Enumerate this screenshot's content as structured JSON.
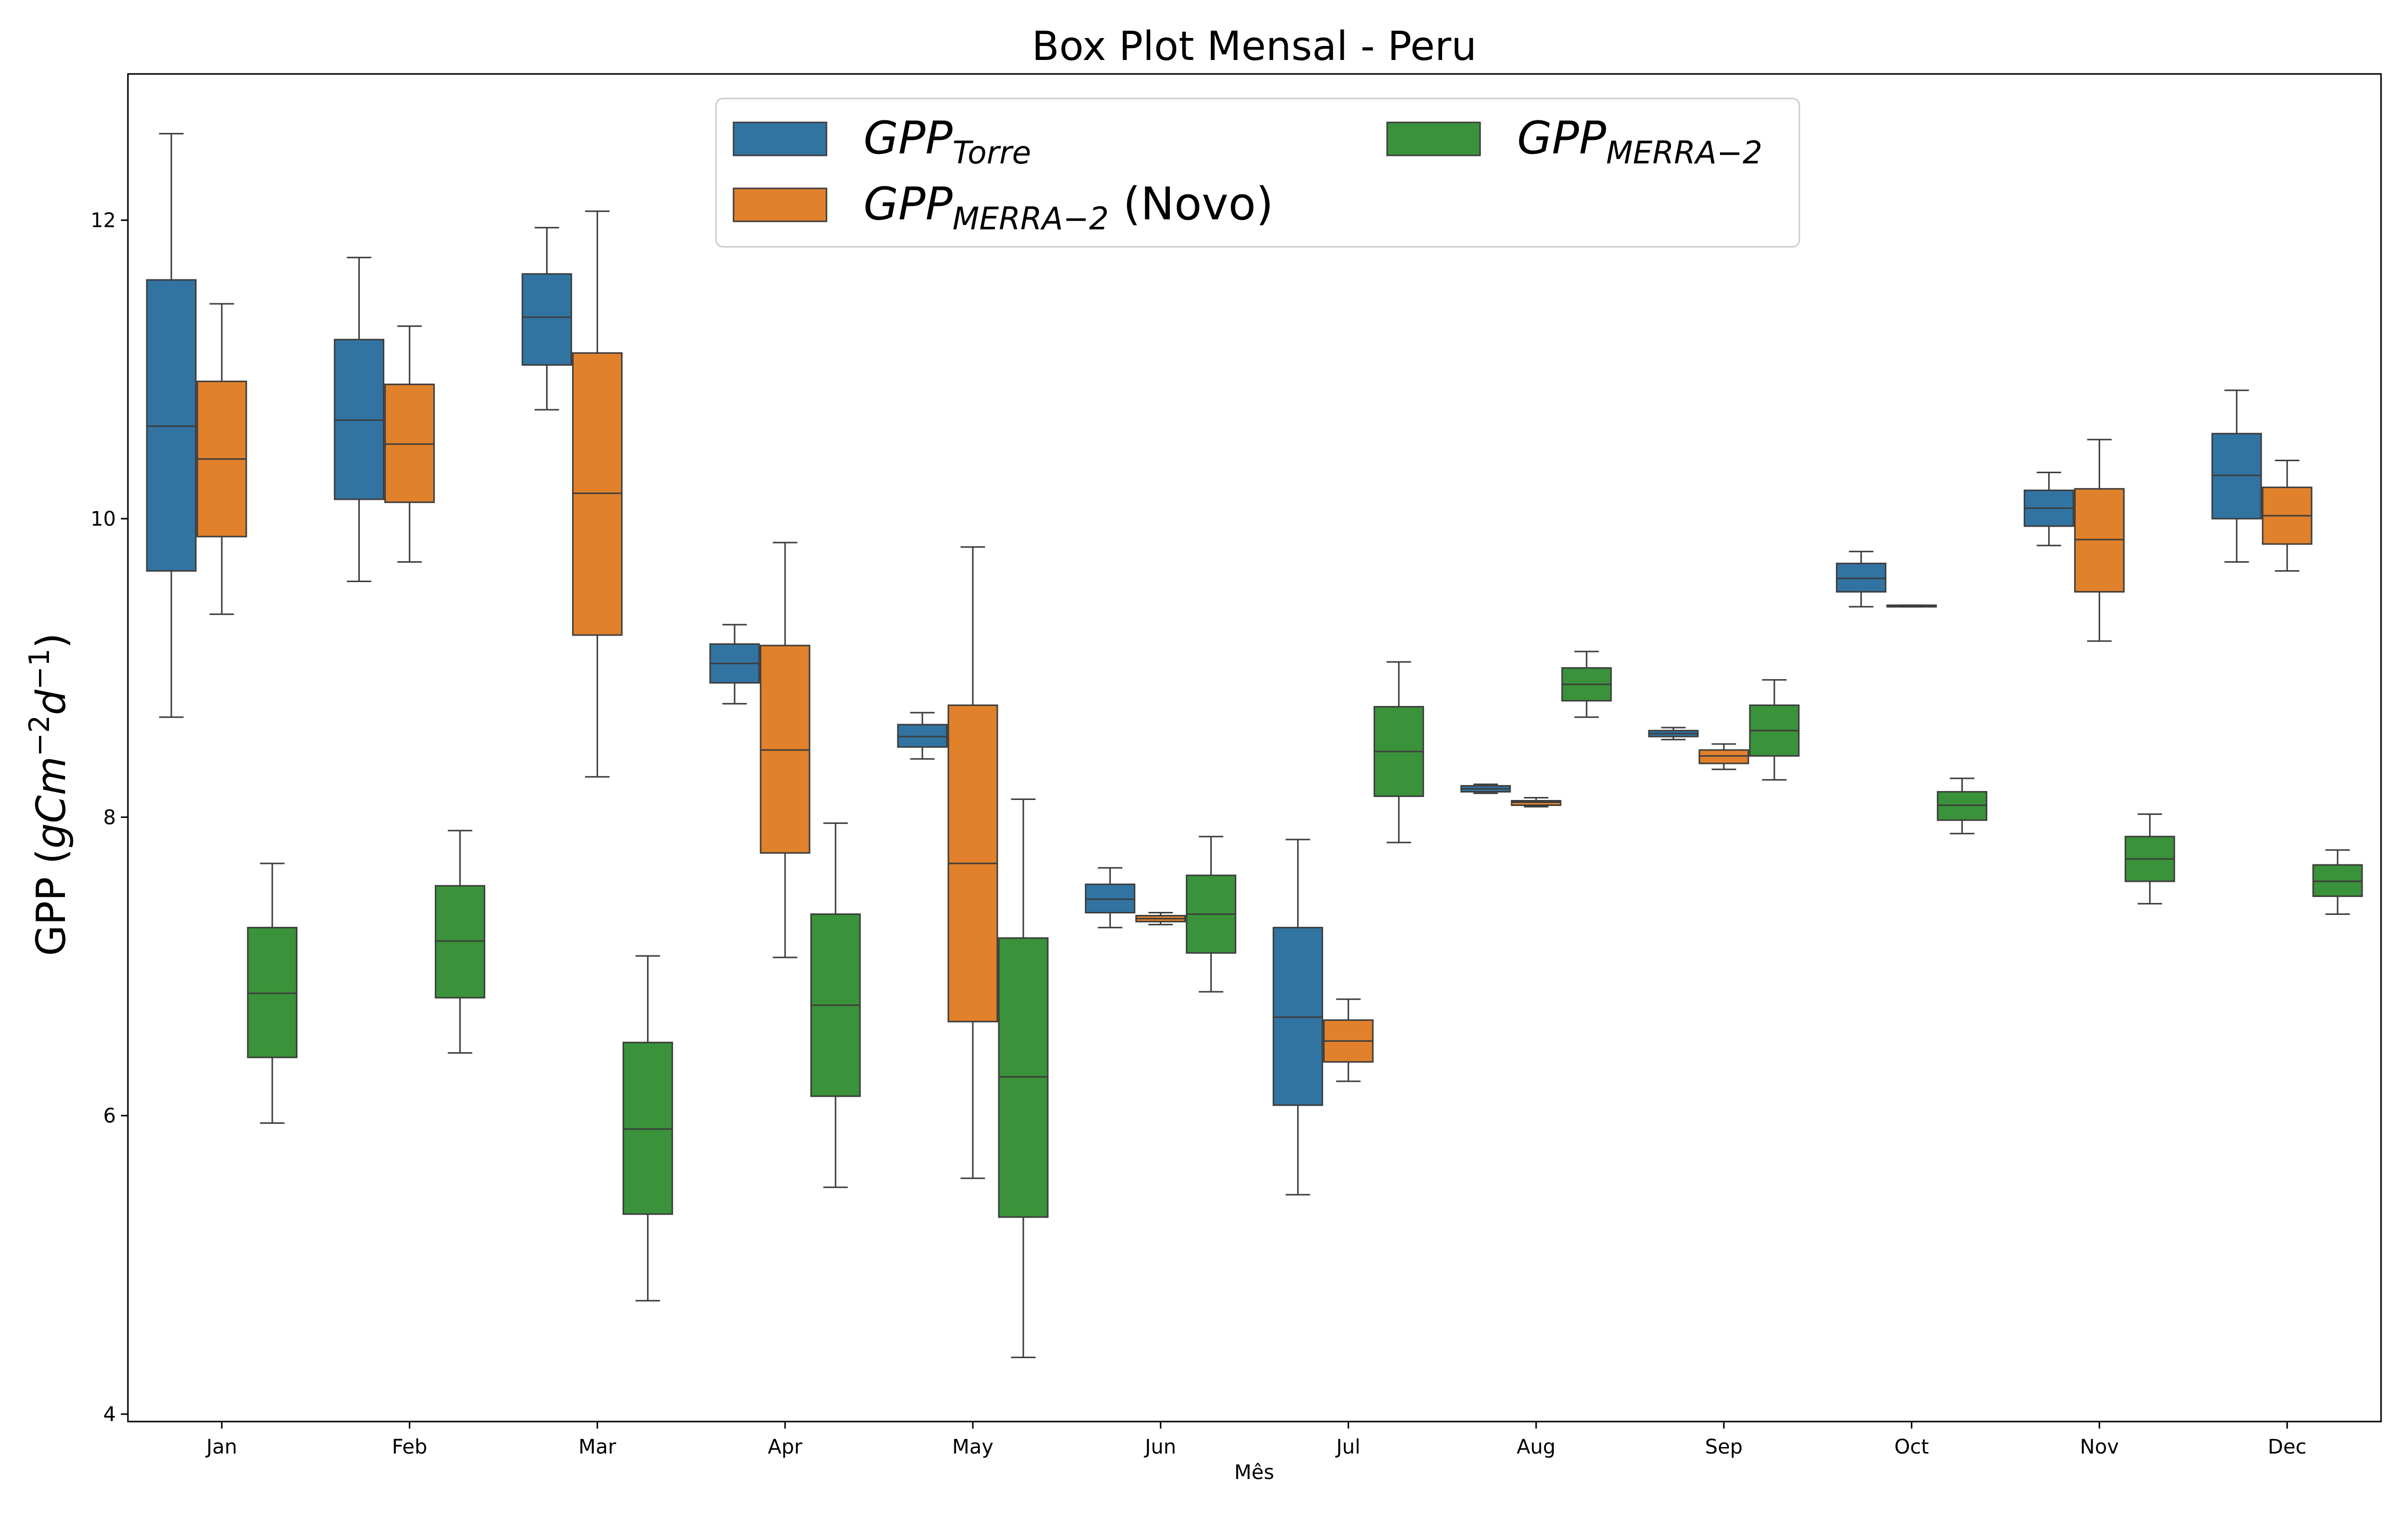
{
  "chart_data": {
    "type": "box",
    "title": "Box Plot Mensal - Peru",
    "xlabel": "Mês",
    "ylabel": {
      "prefix": "GPP (",
      "base": "gCm",
      "sup1": "−2",
      "mid": "d",
      "sup2": "−1",
      "suffix": ")"
    },
    "ylim": [
      3.95,
      12.98
    ],
    "yticks": [
      4,
      6,
      8,
      10,
      12
    ],
    "categories": [
      "Jan",
      "Feb",
      "Mar",
      "Apr",
      "May",
      "Jun",
      "Jul",
      "Aug",
      "Sep",
      "Oct",
      "Nov",
      "Dec"
    ],
    "legend": {
      "placement": "top-center"
    },
    "series": [
      {
        "name_base": "GPP",
        "name_sub": "Torre",
        "name_suffix": "",
        "color": "#3274a1",
        "boxes": [
          [
            8.67,
            9.65,
            10.62,
            11.6,
            12.58
          ],
          [
            9.58,
            10.13,
            10.66,
            11.2,
            11.75
          ],
          [
            10.73,
            11.03,
            11.35,
            11.64,
            11.95
          ],
          [
            8.76,
            8.9,
            9.03,
            9.16,
            9.29
          ],
          [
            8.39,
            8.47,
            8.54,
            8.62,
            8.7
          ],
          [
            7.26,
            7.36,
            7.45,
            7.55,
            7.66
          ],
          [
            5.47,
            6.07,
            6.66,
            7.26,
            7.85
          ],
          [
            8.16,
            8.17,
            8.19,
            8.21,
            8.22
          ],
          [
            8.52,
            8.54,
            8.56,
            8.58,
            8.6
          ],
          [
            9.41,
            9.51,
            9.6,
            9.7,
            9.78
          ],
          [
            9.82,
            9.95,
            10.07,
            10.19,
            10.31
          ],
          [
            9.71,
            10.0,
            10.29,
            10.57,
            10.86
          ]
        ]
      },
      {
        "name_base": "GPP",
        "name_sub": "MERRA−2",
        "name_suffix": " (Novo)",
        "color": "#e1812c",
        "boxes": [
          [
            9.36,
            9.88,
            10.4,
            10.92,
            11.44
          ],
          [
            9.71,
            10.11,
            10.5,
            10.9,
            11.29
          ],
          [
            8.27,
            9.22,
            10.17,
            11.11,
            12.06
          ],
          [
            7.06,
            7.76,
            8.45,
            9.15,
            9.84
          ],
          [
            5.58,
            6.63,
            7.69,
            8.75,
            9.81
          ],
          [
            7.28,
            7.3,
            7.32,
            7.34,
            7.36
          ],
          [
            6.23,
            6.36,
            6.5,
            6.64,
            6.78
          ],
          [
            8.07,
            8.08,
            8.1,
            8.11,
            8.13
          ],
          [
            8.32,
            8.36,
            8.41,
            8.45,
            8.49
          ],
          [
            9.41,
            9.41,
            9.41,
            9.42,
            9.42
          ],
          [
            9.18,
            9.51,
            9.86,
            10.2,
            10.53
          ],
          [
            9.65,
            9.83,
            10.02,
            10.21,
            10.39
          ]
        ]
      },
      {
        "name_base": "GPP",
        "name_sub": "MERRA−2",
        "name_suffix": "",
        "color": "#3a923a",
        "boxes": [
          [
            5.95,
            6.39,
            6.82,
            7.26,
            7.69
          ],
          [
            6.42,
            6.79,
            7.17,
            7.54,
            7.91
          ],
          [
            4.76,
            5.34,
            5.91,
            6.49,
            7.07
          ],
          [
            5.52,
            6.13,
            6.74,
            7.35,
            7.96
          ],
          [
            4.38,
            5.32,
            6.26,
            7.19,
            8.12
          ],
          [
            6.83,
            7.09,
            7.35,
            7.61,
            7.87
          ],
          [
            7.83,
            8.14,
            8.44,
            8.74,
            9.04
          ],
          [
            8.67,
            8.78,
            8.89,
            9.0,
            9.11
          ],
          [
            8.25,
            8.41,
            8.58,
            8.75,
            8.92
          ],
          [
            7.89,
            7.98,
            8.08,
            8.17,
            8.26
          ],
          [
            7.42,
            7.57,
            7.72,
            7.87,
            8.02
          ],
          [
            7.35,
            7.47,
            7.57,
            7.68,
            7.78
          ]
        ]
      }
    ]
  }
}
